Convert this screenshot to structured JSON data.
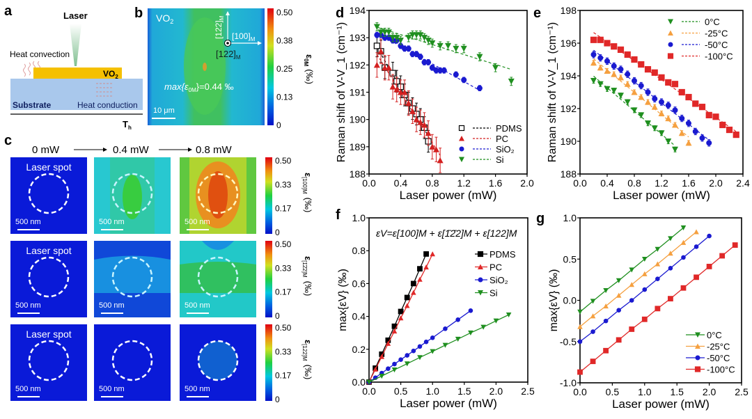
{
  "panel_labels": {
    "a": "a",
    "b": "b",
    "c": "c",
    "d": "d",
    "e": "e",
    "f": "f",
    "g": "g"
  },
  "panel_a": {
    "laser": "Laser",
    "heat_convection": "Heat convection",
    "vo2": "VO",
    "vo2_sub": "2",
    "substrate": "Substrate",
    "heat_conduction": "Heat conduction",
    "th": "T",
    "th_sub": "h",
    "colors": {
      "vo2": "#f5c000",
      "substrate": "#a9c8ec",
      "laser": "#9fcfa8"
    }
  },
  "panel_b": {
    "material": "VO",
    "material_sub": "2",
    "axis_up": "[122]",
    "axis_up_sub": "M",
    "axis_right": "[100]",
    "axis_right_sub": "M",
    "axis_out": "[122]",
    "axis_out_sub": "M",
    "max_label": "max{ε",
    "max_label_sub": "0M",
    "max_value": "}=0.44 ‰",
    "scale_bar": "10 μm",
    "colorbar_ticks": [
      "0.50",
      "0.38",
      "0.25",
      "0.13",
      "0"
    ],
    "colorbar_label": "ε",
    "colorbar_label_sub": "0M",
    "colorbar_unit": "(‰)"
  },
  "panel_c": {
    "powers": [
      "0 mW",
      "0.4 mW",
      "0.8 mW"
    ],
    "laser_spot": "Laser spot",
    "scale_bar": "500 nm",
    "colorbar_ticks": [
      "0.50",
      "0.33",
      "0.17",
      "0"
    ],
    "rows": [
      {
        "label": "ε",
        "sub": "[100]M",
        "unit": "(‰)"
      },
      {
        "label": "ε",
        "sub": "[1̄2̄2]M",
        "unit": "(‰)"
      },
      {
        "label": "ε",
        "sub": "[122]M",
        "unit": "(‰)"
      }
    ]
  },
  "chart_data": [
    {
      "id": "d",
      "type": "scatter",
      "xlabel": "Laser power (mW)",
      "ylabel": "Raman shift of V-V_1 (cm⁻¹)",
      "xlim": [
        0,
        2.0
      ],
      "ylim": [
        188,
        194
      ],
      "xticks": [
        0,
        0.4,
        0.8,
        1.2,
        1.6,
        2.0
      ],
      "xtick_labels": [
        "0.0",
        "0.4",
        "0.8",
        "1.2",
        "1.6",
        "2.0"
      ],
      "yticks": [
        188,
        189,
        190,
        191,
        192,
        193,
        194
      ],
      "ytick_labels": [
        "188",
        "189",
        "190",
        "191",
        "192",
        "193",
        "194"
      ],
      "fit": "linear-dashed",
      "legend": "bottom-right",
      "series": [
        {
          "name": "PDMS",
          "marker": "open-square",
          "color": "#000000",
          "yerr": 0.4,
          "x": [
            0.1,
            0.15,
            0.2,
            0.3,
            0.35,
            0.4,
            0.45,
            0.5,
            0.55,
            0.6,
            0.65,
            0.7,
            0.75
          ],
          "y": [
            192.7,
            192.5,
            191.9,
            191.7,
            191.4,
            191.2,
            190.9,
            190.6,
            190.4,
            190.2,
            190.0,
            189.7,
            189.2
          ]
        },
        {
          "name": "PC",
          "marker": "triangle-up",
          "color": "#d42020",
          "yerr": 0.45,
          "x": [
            0.1,
            0.15,
            0.2,
            0.25,
            0.3,
            0.35,
            0.4,
            0.45,
            0.5,
            0.55,
            0.6,
            0.65,
            0.7,
            0.75,
            0.8,
            0.85,
            0.9
          ],
          "y": [
            192.0,
            192.5,
            191.9,
            191.9,
            191.2,
            191.1,
            191.0,
            191.0,
            190.6,
            190.3,
            190.0,
            189.9,
            189.8,
            189.5,
            189.0,
            188.9,
            188.5
          ]
        },
        {
          "name": "SiO₂",
          "marker": "circle",
          "color": "#1a1ad0",
          "yerr": 0.1,
          "x": [
            0.1,
            0.15,
            0.2,
            0.25,
            0.3,
            0.35,
            0.4,
            0.45,
            0.5,
            0.55,
            0.6,
            0.65,
            0.7,
            0.75,
            0.8,
            0.85,
            0.9,
            0.95,
            1.1,
            1.2,
            1.4
          ],
          "y": [
            193.1,
            193.1,
            193.0,
            193.0,
            192.9,
            192.9,
            192.7,
            192.6,
            192.6,
            192.4,
            192.4,
            192.3,
            192.1,
            192.1,
            191.9,
            191.8,
            191.8,
            191.8,
            191.65,
            191.45,
            191.15
          ]
        },
        {
          "name": "Si",
          "marker": "triangle-down",
          "color": "#1f8f1f",
          "yerr": 0.15,
          "x": [
            0.1,
            0.15,
            0.2,
            0.25,
            0.3,
            0.35,
            0.4,
            0.5,
            0.55,
            0.6,
            0.65,
            0.7,
            0.75,
            0.8,
            0.9,
            1.0,
            1.1,
            1.2,
            1.4,
            1.6,
            1.8
          ],
          "y": [
            193.4,
            193.2,
            193.2,
            193.2,
            193.0,
            193.0,
            192.9,
            193.0,
            193.1,
            193.1,
            193.1,
            193.0,
            192.9,
            192.8,
            192.7,
            192.7,
            192.6,
            192.6,
            192.3,
            191.9,
            191.4
          ]
        }
      ]
    },
    {
      "id": "e",
      "type": "scatter",
      "xlabel": "Laser power (mW)",
      "ylabel": "Raman shift of V-V_1 (cm⁻¹)",
      "xlim": [
        0,
        2.4
      ],
      "ylim": [
        188,
        198
      ],
      "xticks": [
        0,
        0.4,
        0.8,
        1.2,
        1.6,
        2.0,
        2.4
      ],
      "xtick_labels": [
        "0.0",
        "0.4",
        "0.8",
        "1.2",
        "1.6",
        "2.0",
        "2.4"
      ],
      "yticks": [
        188,
        190,
        192,
        194,
        196,
        198
      ],
      "ytick_labels": [
        "188",
        "190",
        "192",
        "194",
        "196",
        "198"
      ],
      "fit": "linear-dashed",
      "legend": "top-right",
      "series": [
        {
          "name": "0°C",
          "marker": "triangle-down",
          "color": "#1f8f1f",
          "yerr": 0.15,
          "x": [
            0.2,
            0.3,
            0.4,
            0.5,
            0.6,
            0.7,
            0.8,
            0.9,
            1.0,
            1.1,
            1.2,
            1.3,
            1.4
          ],
          "y": [
            193.7,
            193.5,
            193.2,
            193.1,
            192.8,
            192.4,
            191.9,
            191.6,
            191.1,
            190.8,
            190.5,
            190.0,
            189.5
          ]
        },
        {
          "name": "-25°C",
          "marker": "triangle-up",
          "color": "#f5a040",
          "yerr": 0.15,
          "x": [
            0.2,
            0.3,
            0.4,
            0.5,
            0.6,
            0.7,
            0.8,
            0.9,
            1.0,
            1.1,
            1.2,
            1.3,
            1.4,
            1.5,
            1.6
          ],
          "y": [
            194.8,
            194.5,
            194.3,
            194.1,
            193.9,
            193.5,
            193.0,
            192.7,
            192.4,
            192.1,
            191.7,
            191.4,
            191.0,
            190.5,
            189.9
          ]
        },
        {
          "name": "-50°C",
          "marker": "circle",
          "color": "#1a1ad0",
          "yerr": 0.2,
          "x": [
            0.2,
            0.3,
            0.4,
            0.5,
            0.6,
            0.7,
            0.8,
            0.9,
            1.0,
            1.1,
            1.2,
            1.3,
            1.4,
            1.5,
            1.6,
            1.7,
            1.8,
            1.9
          ],
          "y": [
            195.3,
            195.1,
            194.9,
            194.6,
            194.4,
            194.1,
            193.7,
            193.4,
            193.0,
            192.6,
            192.4,
            192.2,
            191.9,
            191.4,
            191.1,
            190.6,
            190.2,
            189.9
          ]
        },
        {
          "name": "-100°C",
          "marker": "square",
          "color": "#e02828",
          "yerr": 0.15,
          "x": [
            0.2,
            0.3,
            0.4,
            0.5,
            0.6,
            0.7,
            0.8,
            0.9,
            1.0,
            1.1,
            1.2,
            1.3,
            1.4,
            1.5,
            1.6,
            1.7,
            1.8,
            1.9,
            2.0,
            2.1,
            2.2,
            2.3
          ],
          "y": [
            196.2,
            196.2,
            196.0,
            195.8,
            195.6,
            195.3,
            195.0,
            194.7,
            194.4,
            194.2,
            193.9,
            193.6,
            193.5,
            193.0,
            192.7,
            192.3,
            192.1,
            191.6,
            191.5,
            191.0,
            190.7,
            190.4
          ]
        }
      ]
    },
    {
      "id": "f",
      "type": "line",
      "xlabel": "Laser power (mW)",
      "ylabel": "max{εV} (‰)",
      "annotation": "εV=ε[100]M + ε[1̄2̄2]M + ε[122]M",
      "xlim": [
        0,
        2.5
      ],
      "ylim": [
        0,
        1.0
      ],
      "xticks": [
        0,
        0.5,
        1.0,
        1.5,
        2.0,
        2.5
      ],
      "xtick_labels": [
        "0.0",
        "0.5",
        "1.0",
        "1.5",
        "2.0",
        "2.5"
      ],
      "yticks": [
        0,
        0.2,
        0.4,
        0.6,
        0.8,
        1.0
      ],
      "ytick_labels": [
        "0.0",
        "0.2",
        "0.4",
        "0.6",
        "0.8",
        "1.0"
      ],
      "fit": "none",
      "legend": "top-right",
      "series": [
        {
          "name": "PDMS",
          "marker": "square",
          "color": "#000000",
          "x": [
            0,
            0.1,
            0.2,
            0.3,
            0.4,
            0.5,
            0.6,
            0.7,
            0.8,
            0.9
          ],
          "y": [
            0,
            0.085,
            0.17,
            0.255,
            0.34,
            0.43,
            0.515,
            0.6,
            0.69,
            0.78
          ]
        },
        {
          "name": "PC",
          "marker": "triangle-up",
          "color": "#e02828",
          "x": [
            0,
            0.1,
            0.2,
            0.3,
            0.4,
            0.5,
            0.6,
            0.7,
            0.8,
            0.9,
            1.0
          ],
          "y": [
            0,
            0.078,
            0.155,
            0.235,
            0.31,
            0.39,
            0.465,
            0.545,
            0.625,
            0.7,
            0.78
          ]
        },
        {
          "name": "SiO₂",
          "marker": "circle",
          "color": "#1a1ad0",
          "x": [
            0,
            0.1,
            0.2,
            0.3,
            0.4,
            0.5,
            0.6,
            0.7,
            0.8,
            0.9,
            1.0,
            1.2,
            1.4,
            1.6
          ],
          "y": [
            0,
            0.027,
            0.055,
            0.082,
            0.11,
            0.137,
            0.163,
            0.19,
            0.217,
            0.245,
            0.27,
            0.325,
            0.38,
            0.435
          ]
        },
        {
          "name": "Si",
          "marker": "triangle-down",
          "color": "#1f8f1f",
          "x": [
            0,
            0.2,
            0.4,
            0.6,
            0.8,
            1.0,
            1.2,
            1.4,
            1.6,
            1.8,
            2.0,
            2.2
          ],
          "y": [
            0,
            0.037,
            0.075,
            0.112,
            0.15,
            0.187,
            0.225,
            0.262,
            0.3,
            0.335,
            0.373,
            0.41
          ]
        }
      ]
    },
    {
      "id": "g",
      "type": "line",
      "xlabel": "Laser power (mW)",
      "ylabel": "max{εV} (‰)",
      "xlim": [
        0,
        2.5
      ],
      "ylim": [
        -1.0,
        1.0
      ],
      "xticks": [
        0,
        0.5,
        1.0,
        1.5,
        2.0,
        2.5
      ],
      "xtick_labels": [
        "0.0",
        "0.5",
        "1.0",
        "1.5",
        "2.0",
        "2.5"
      ],
      "yticks": [
        -1.0,
        -0.5,
        0,
        0.5,
        1.0
      ],
      "ytick_labels": [
        "-1.0",
        "-0.5",
        "0.0",
        "0.5",
        "1.0"
      ],
      "fit": "none",
      "legend": "bottom-right",
      "series": [
        {
          "name": "0°C",
          "marker": "triangle-down",
          "color": "#1f8f1f",
          "x": [
            0,
            0.2,
            0.4,
            0.6,
            0.8,
            1.0,
            1.2,
            1.4,
            1.6
          ],
          "y": [
            -0.14,
            -0.01,
            0.12,
            0.24,
            0.37,
            0.5,
            0.62,
            0.75,
            0.88
          ]
        },
        {
          "name": "-25°C",
          "marker": "triangle-up",
          "color": "#f5a040",
          "x": [
            0,
            0.2,
            0.4,
            0.6,
            0.8,
            1.0,
            1.2,
            1.4,
            1.6,
            1.8
          ],
          "y": [
            -0.32,
            -0.19,
            -0.07,
            0.06,
            0.19,
            0.32,
            0.44,
            0.57,
            0.7,
            0.83
          ]
        },
        {
          "name": "-50°C",
          "marker": "circle",
          "color": "#1a1ad0",
          "x": [
            0,
            0.2,
            0.4,
            0.6,
            0.8,
            1.0,
            1.2,
            1.4,
            1.6,
            1.8,
            2.0
          ],
          "y": [
            -0.5,
            -0.38,
            -0.25,
            -0.12,
            0,
            0.13,
            0.26,
            0.39,
            0.52,
            0.65,
            0.78
          ]
        },
        {
          "name": "-100°C",
          "marker": "square",
          "color": "#e02828",
          "x": [
            0,
            0.2,
            0.4,
            0.6,
            0.8,
            1.0,
            1.2,
            1.4,
            1.6,
            1.8,
            2.0,
            2.2,
            2.4
          ],
          "y": [
            -0.87,
            -0.74,
            -0.61,
            -0.48,
            -0.35,
            -0.23,
            -0.1,
            0.02,
            0.15,
            0.28,
            0.41,
            0.54,
            0.67
          ]
        }
      ]
    }
  ]
}
